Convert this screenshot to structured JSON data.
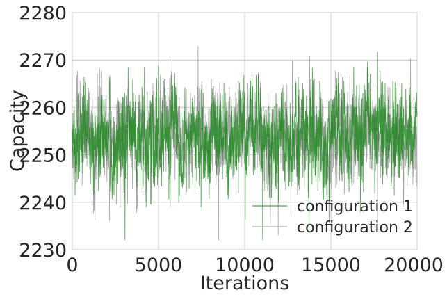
{
  "chart_data": {
    "type": "line",
    "title": "",
    "xlabel": "Iterations",
    "ylabel": "Capacity",
    "xlim": [
      0,
      20000
    ],
    "ylim": [
      2230,
      2280
    ],
    "x_ticks": [
      "0",
      "5000",
      "10000",
      "15000",
      "20000"
    ],
    "y_ticks": [
      "2230",
      "2240",
      "2250",
      "2260",
      "2270",
      "2280"
    ],
    "grid": true,
    "legend": "lower-right",
    "series": [
      {
        "name": "configuration 1",
        "color": "#228b22",
        "mean": 2254,
        "range": [
          2232,
          2273
        ],
        "points": 20000
      },
      {
        "name": "configuration 2",
        "color": "#999999",
        "mean": 2254,
        "range": [
          2232,
          2273
        ],
        "points": 20000
      }
    ]
  }
}
